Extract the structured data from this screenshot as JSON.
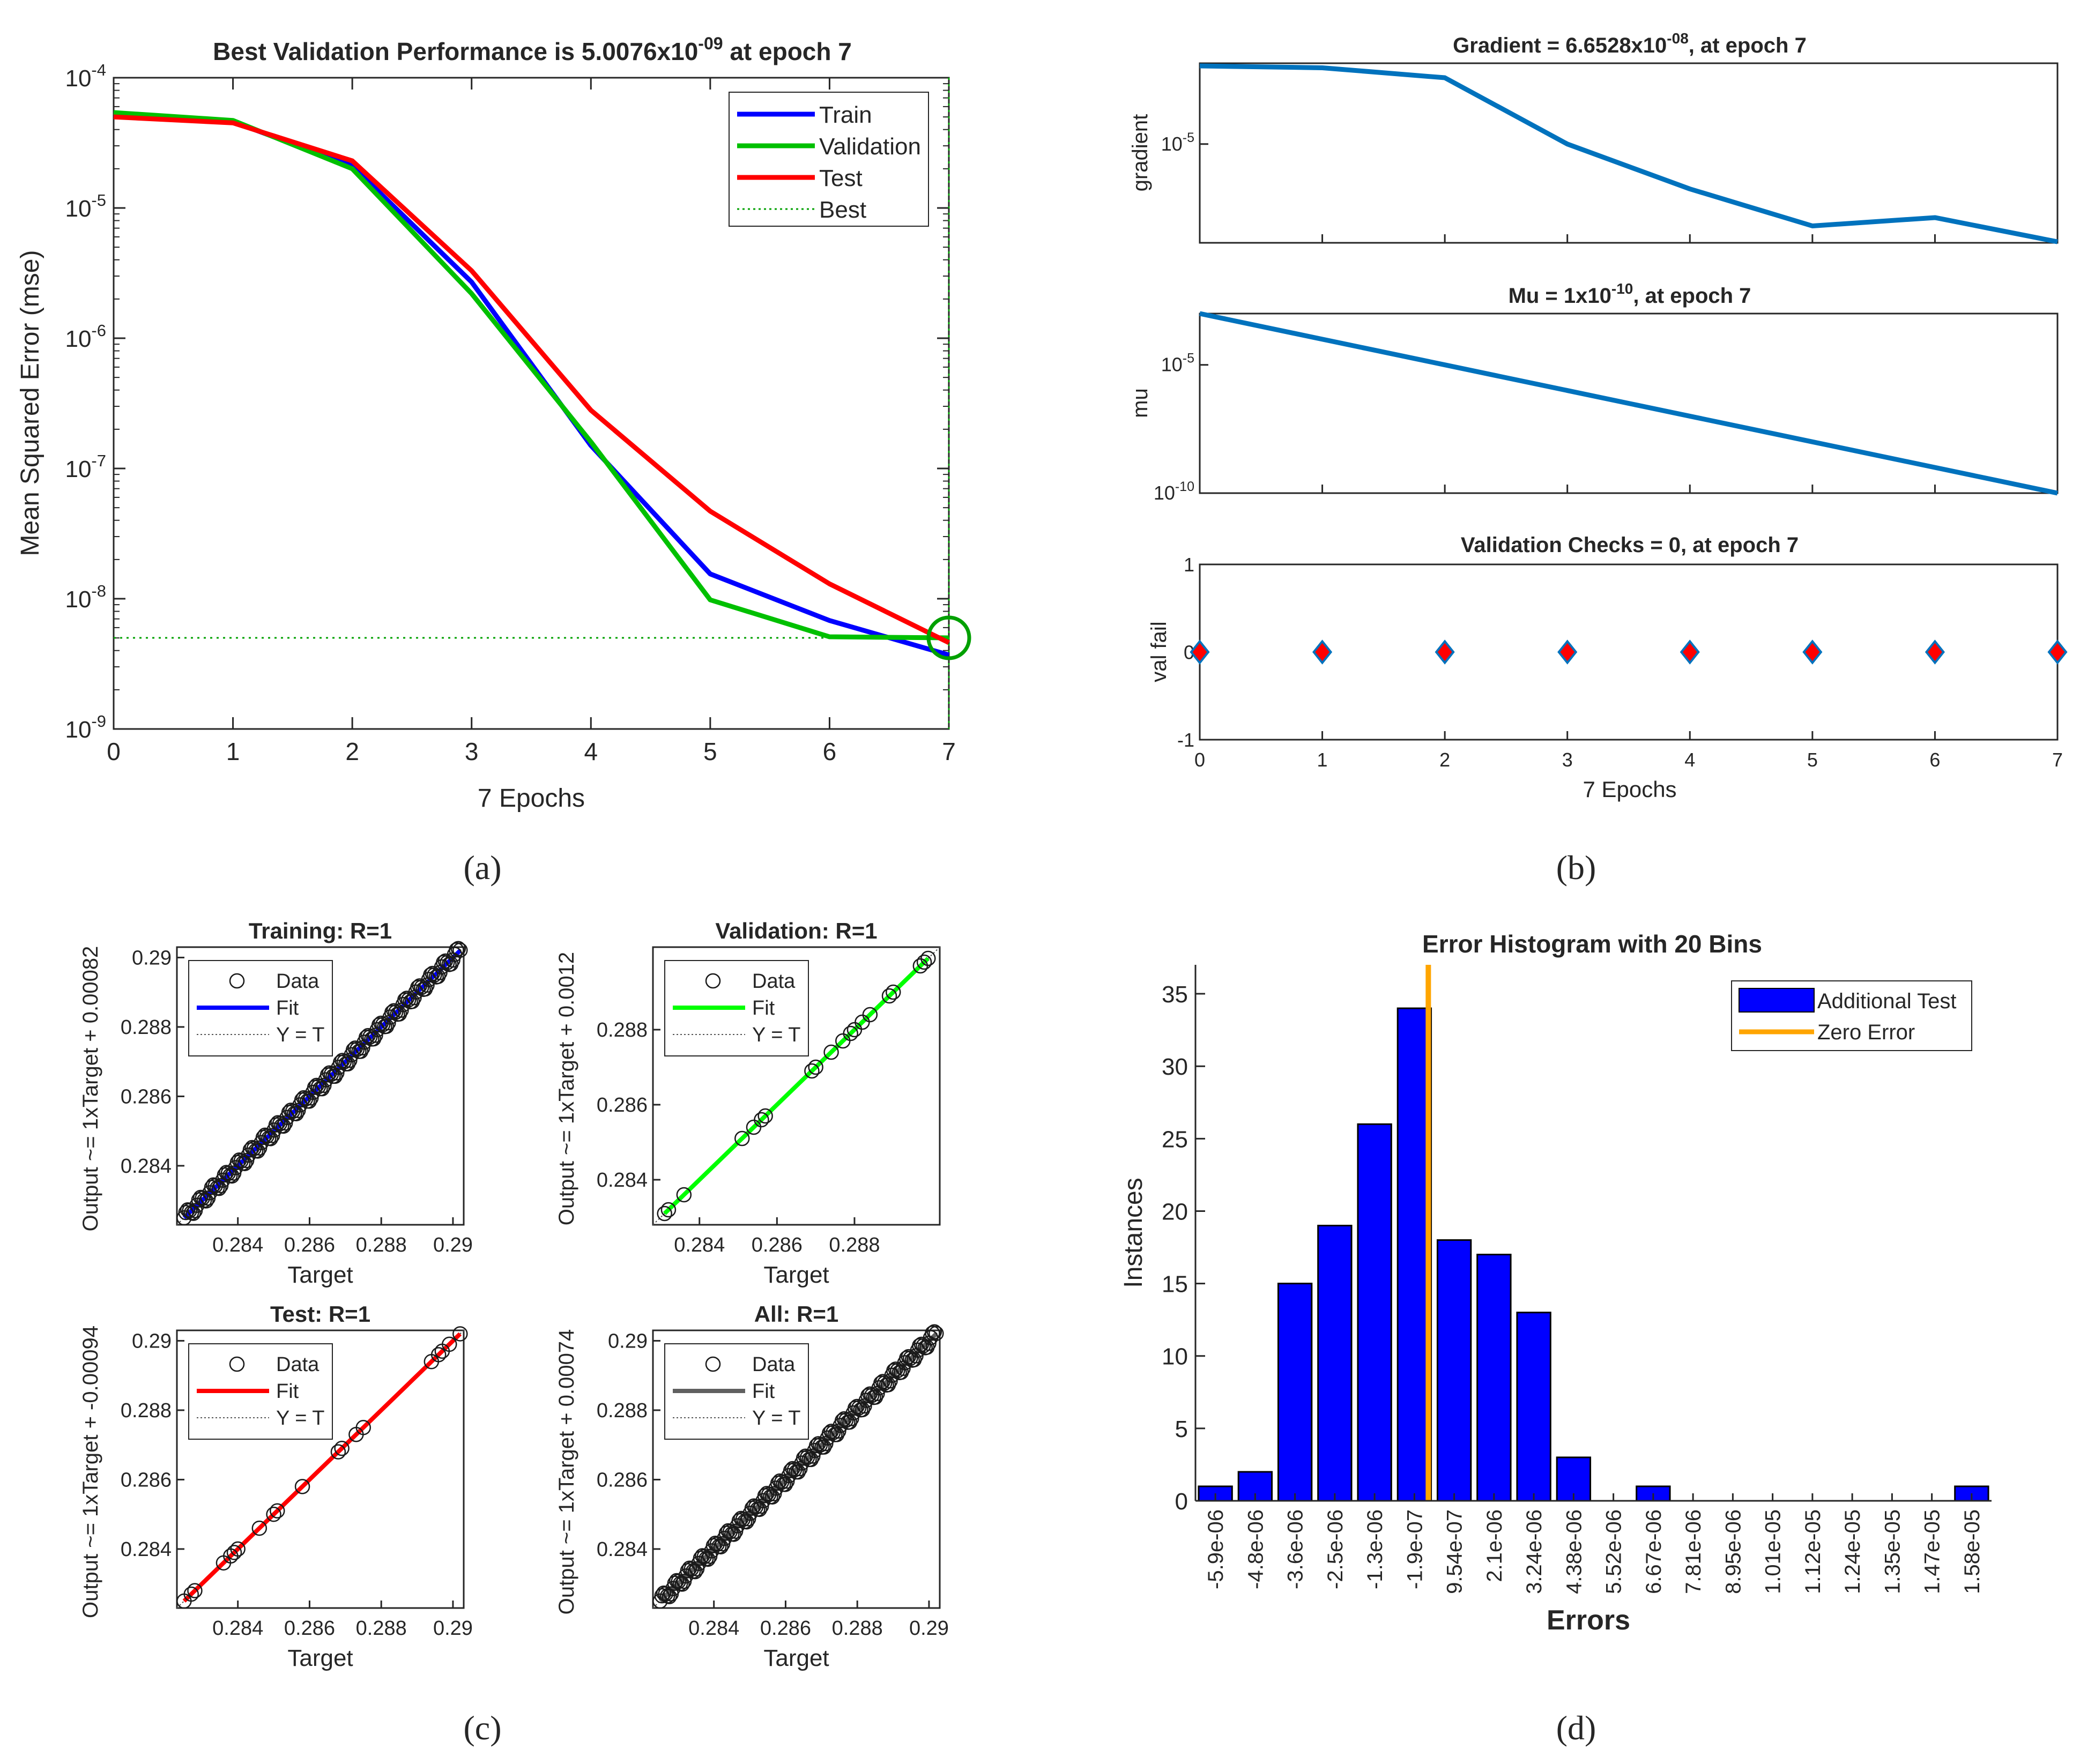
{
  "panels": {
    "a": {
      "caption": "(a)",
      "title_main": "Best Validation Performance is 5.0076x10",
      "title_exp": "-09",
      "title_tail": " at epoch 7",
      "xlabel": "7 Epochs",
      "ylabel": "Mean Squared Error  (mse)"
    },
    "b": {
      "caption": "(b)",
      "gradient_title_main": "Gradient = 6.6528x10",
      "gradient_title_exp": "-08",
      "gradient_title_tail": ", at epoch 7",
      "gradient_ylabel": "gradient",
      "mu_title_main": "Mu = 1x10",
      "mu_title_exp": "-10",
      "mu_title_tail": ", at epoch 7",
      "mu_ylabel": "mu",
      "val_title": "Validation Checks = 0, at epoch 7",
      "val_ylabel": "val fail",
      "xlabel": "7 Epochs"
    },
    "c": {
      "caption": "(c)",
      "xlabel": "Target"
    },
    "d": {
      "caption": "(d)",
      "title": "Error Histogram with 20 Bins",
      "xlabel": "Errors",
      "ylabel": "Instances"
    }
  },
  "chart_data": [
    {
      "id": "performance",
      "type": "line",
      "y_scale": "log",
      "x": [
        0,
        1,
        2,
        3,
        4,
        5,
        6,
        7
      ],
      "series": [
        {
          "name": "Train",
          "color": "#0000ff",
          "values": [
            5.2e-05,
            4.6e-05,
            2.1e-05,
            2.7e-06,
            1.5e-07,
            1.55e-08,
            6.8e-09,
            3.7e-09
          ]
        },
        {
          "name": "Validation",
          "color": "#00c000",
          "values": [
            5.4e-05,
            4.7e-05,
            2e-05,
            2.2e-06,
            1.6e-07,
            9.8e-09,
            5.1e-09,
            5.0076e-09
          ]
        },
        {
          "name": "Test",
          "color": "#ff0000",
          "values": [
            5e-05,
            4.5e-05,
            2.3e-05,
            3.3e-06,
            2.8e-07,
            4.7e-08,
            1.3e-08,
            4.6e-09
          ]
        }
      ],
      "best": {
        "name": "Best",
        "epoch": 7,
        "value": 5.0076e-09,
        "color": "#00a000"
      },
      "x_ticks": [
        "0",
        "1",
        "2",
        "3",
        "4",
        "5",
        "6",
        "7"
      ],
      "y_ticks": [
        "10",
        "10",
        "10",
        "10",
        "10",
        "10"
      ],
      "y_tick_exps": [
        "-4",
        "-5",
        "-6",
        "-7",
        "-8",
        "-9"
      ],
      "xlim": [
        0,
        7
      ],
      "legend_position": "top-right"
    },
    {
      "id": "gradient",
      "type": "line",
      "y_scale": "log",
      "x": [
        0,
        1,
        2,
        3,
        4,
        5,
        6,
        7
      ],
      "values": [
        0.00055,
        0.0005,
        0.0003,
        1e-05,
        1e-06,
        1.5e-07,
        2.3e-07,
        6.6528e-08
      ],
      "y_ticks": [
        "10"
      ],
      "y_tick_exps": [
        "-5"
      ],
      "color": "#0072bd"
    },
    {
      "id": "mu",
      "type": "line",
      "y_scale": "log",
      "x": [
        0,
        1,
        2,
        3,
        4,
        5,
        6,
        7
      ],
      "values": [
        0.001,
        0.0001,
        1e-05,
        1e-06,
        1e-07,
        1e-08,
        1e-09,
        1e-10
      ],
      "y_ticks": [
        "10",
        "10"
      ],
      "y_tick_exps": [
        "-5",
        "-10"
      ],
      "color": "#0072bd"
    },
    {
      "id": "validation_checks",
      "type": "scatter",
      "x": [
        0,
        1,
        2,
        3,
        4,
        5,
        6,
        7
      ],
      "values": [
        0,
        0,
        0,
        0,
        0,
        0,
        0,
        0
      ],
      "ylim": [
        -1,
        1
      ],
      "y_ticks": [
        "1",
        "0",
        "-1"
      ],
      "x_ticks": [
        "0",
        "1",
        "2",
        "3",
        "4",
        "5",
        "6",
        "7"
      ],
      "marker": "diamond"
    },
    {
      "id": "regression",
      "type": "scatter",
      "legend": {
        "data": "Data",
        "fit": "Fit",
        "ideal": "Y = T"
      },
      "x_ticks_4": [
        "0.284",
        "0.286",
        "0.288",
        "0.29"
      ],
      "x_ticks_3": [
        "0.284",
        "0.286",
        "0.288"
      ],
      "y_ticks_4": [
        "0.29",
        "0.288",
        "0.286",
        "0.284"
      ],
      "y_ticks_3": [
        "0.288",
        "0.286",
        "0.284"
      ],
      "plots": [
        {
          "title": "Training: R=1",
          "ylabel": "Output ~= 1xTarget + 0.00082",
          "fit_color": "#0000ff",
          "points": "dense",
          "xlim": [
            0.2823,
            0.2903
          ]
        },
        {
          "title": "Validation: R=1",
          "ylabel": "Output ~= 1xTarget + 0.0012",
          "fit_color": "#00ff00",
          "points": [
            0.2831,
            0.2832,
            0.2836,
            0.2851,
            0.2854,
            0.2856,
            0.2857,
            0.2869,
            0.287,
            0.2874,
            0.2877,
            0.2879,
            0.288,
            0.2882,
            0.2884,
            0.2889,
            0.289,
            0.2897,
            0.2898,
            0.2899
          ],
          "xlim": [
            0.2828,
            0.2902
          ]
        },
        {
          "title": "Test: R=1",
          "ylabel": "Output ~= 1xTarget + -0.00094",
          "fit_color": "#ff0000",
          "points": [
            0.2825,
            0.2827,
            0.2828,
            0.2836,
            0.2838,
            0.2839,
            0.284,
            0.2846,
            0.285,
            0.2851,
            0.2858,
            0.2868,
            0.2869,
            0.2873,
            0.2875,
            0.2894,
            0.2896,
            0.2897,
            0.2899,
            0.2902
          ],
          "xlim": [
            0.2823,
            0.2903
          ]
        },
        {
          "title": "All: R=1",
          "ylabel": "Output ~= 1xTarget + 0.00074",
          "fit_color": "#606060",
          "points": "dense",
          "xlim": [
            0.2823,
            0.2903
          ]
        }
      ]
    },
    {
      "id": "histogram",
      "type": "bar",
      "categories": [
        "-5.9e-06",
        "-4.8e-06",
        "-3.6e-06",
        "-2.5e-06",
        "-1.3e-06",
        "-1.9e-07",
        "9.54e-07",
        "2.1e-06",
        "3.24e-06",
        "4.38e-06",
        "5.52e-06",
        "6.67e-06",
        "7.81e-06",
        "8.95e-06",
        "1.01e-05",
        "1.12e-05",
        "1.24e-05",
        "1.35e-05",
        "1.47e-05",
        "1.58e-05"
      ],
      "values": [
        1,
        2,
        15,
        19,
        26,
        34,
        18,
        17,
        13,
        3,
        0,
        1,
        0,
        0,
        0,
        0,
        0,
        0,
        0,
        1
      ],
      "series_name": "Additional Test",
      "zero_line_name": "Zero Error",
      "zero_error_position": 5.35,
      "ylim": [
        0,
        37
      ],
      "y_ticks": [
        "0",
        "5",
        "10",
        "15",
        "20",
        "25",
        "30",
        "35"
      ],
      "bar_color": "#0000ff",
      "zero_color": "#ffa500",
      "legend_position": "top-right"
    }
  ]
}
